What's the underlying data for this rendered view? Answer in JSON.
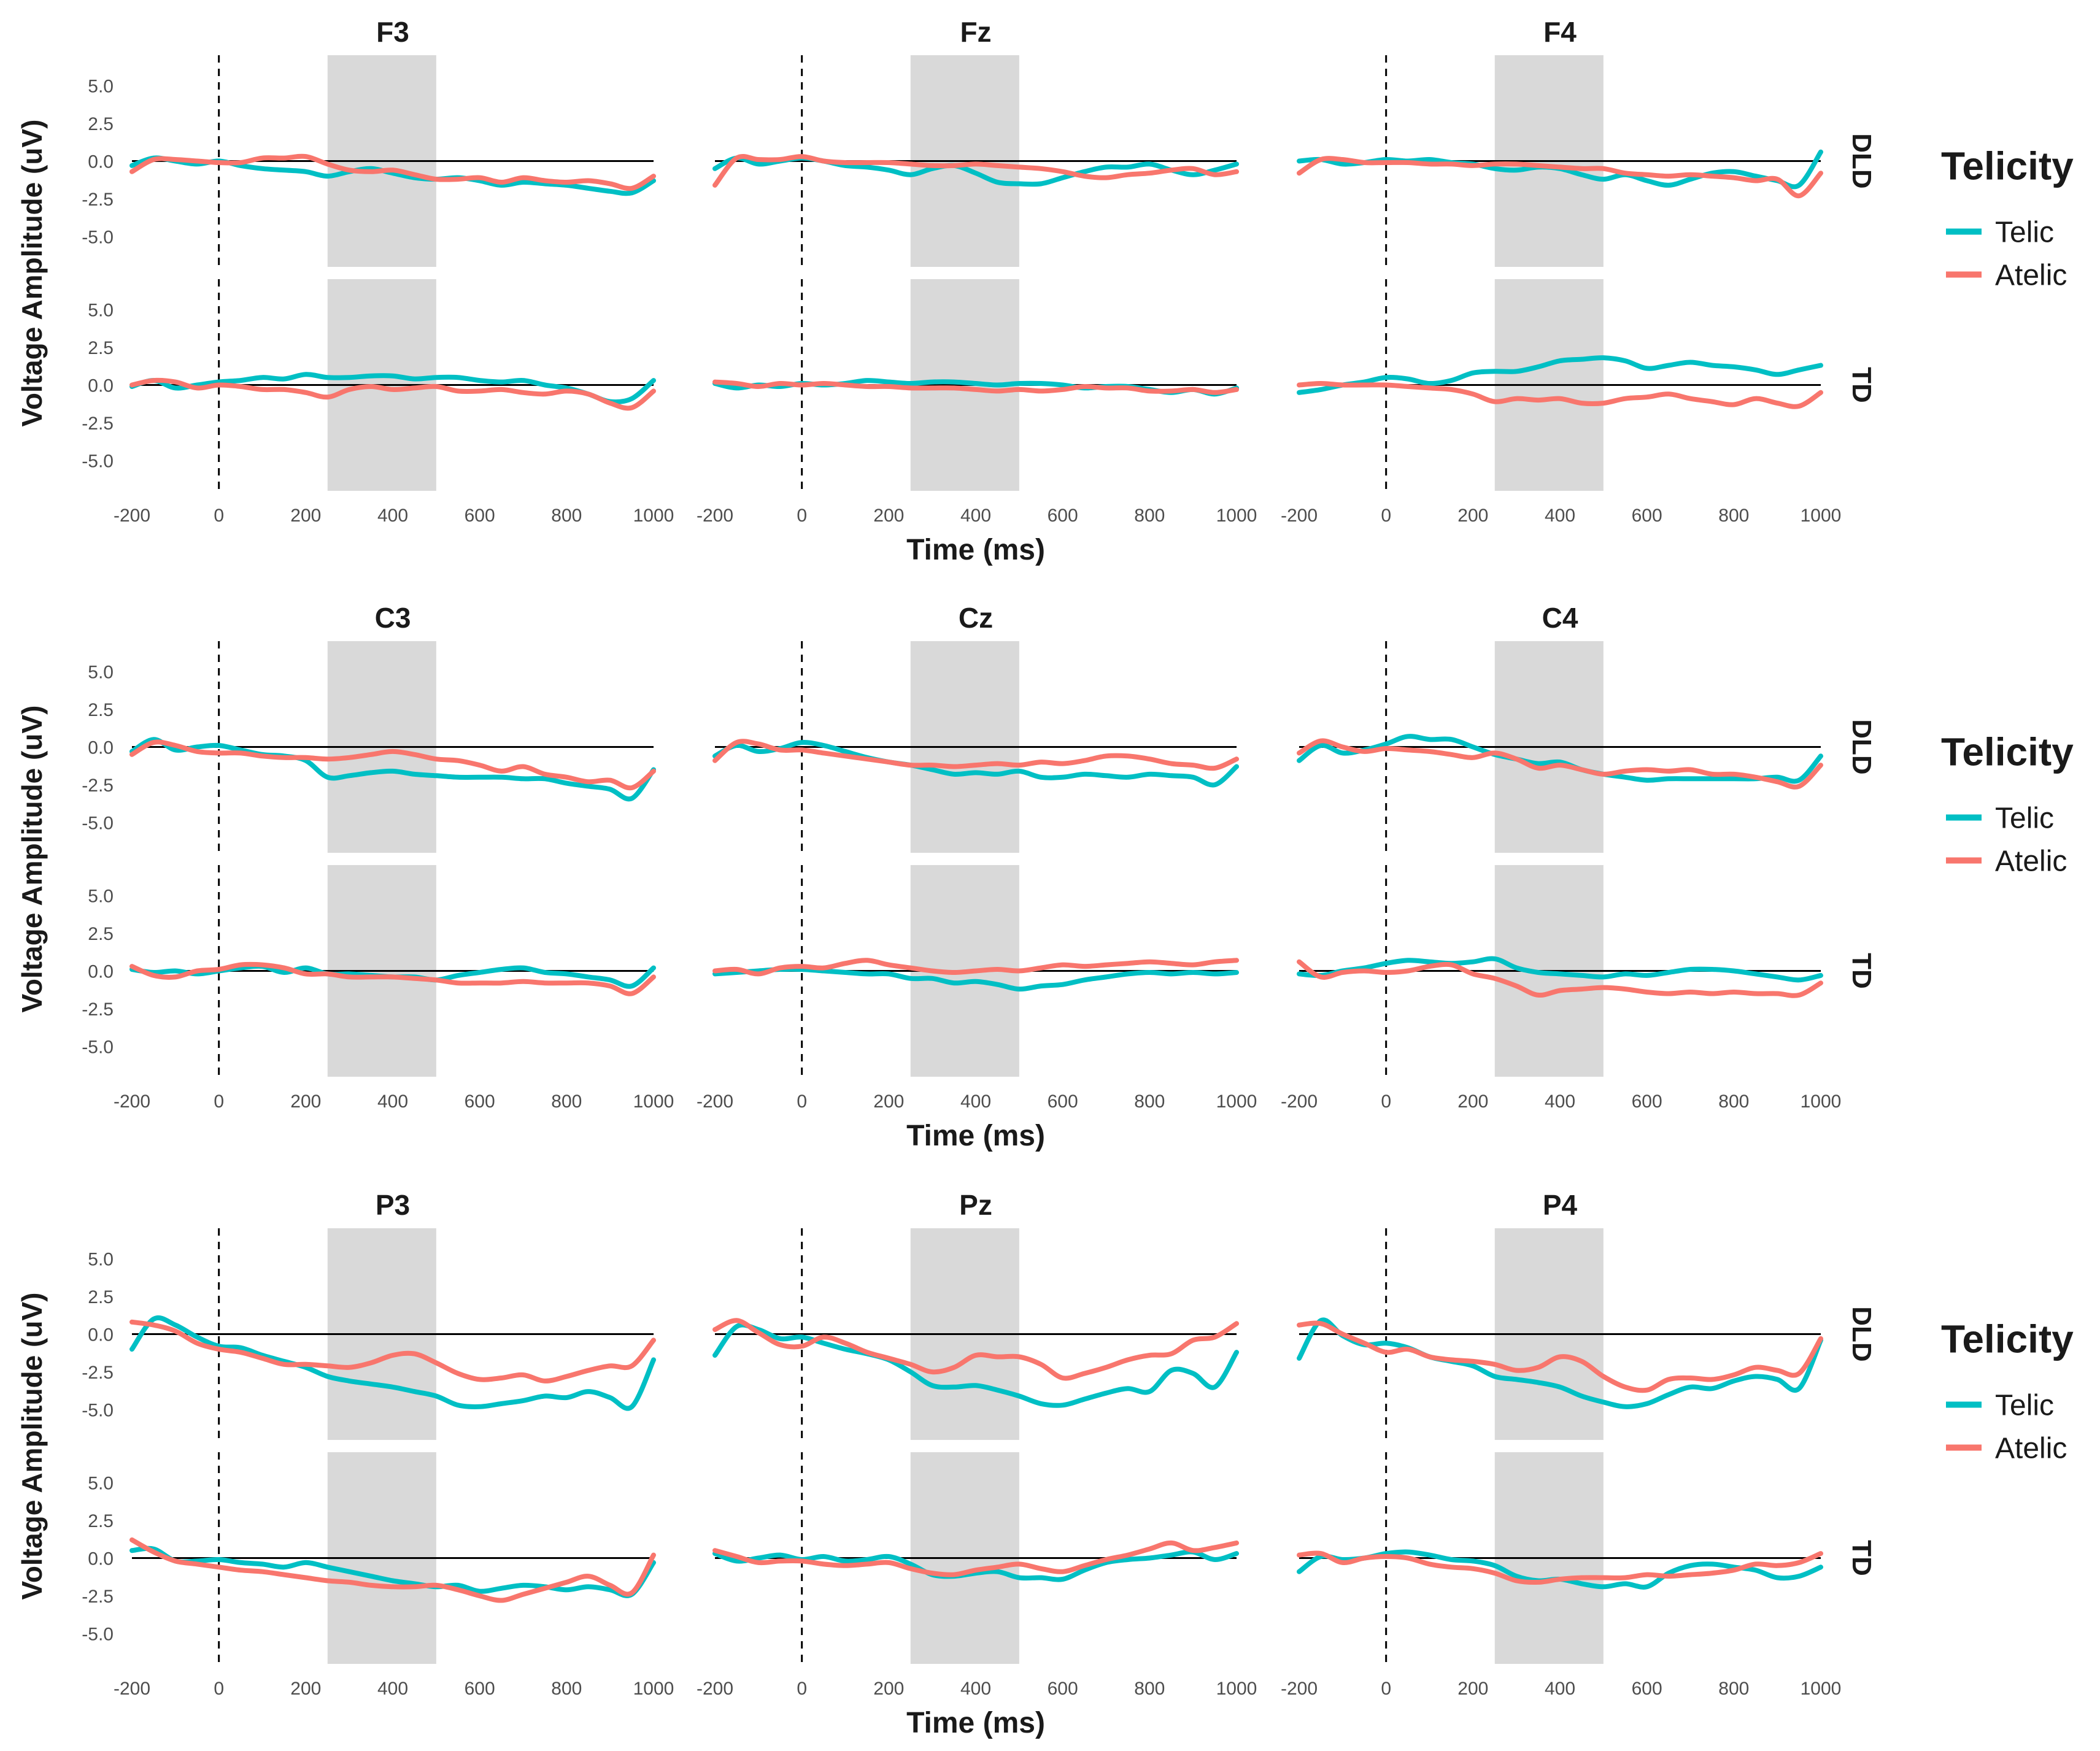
{
  "chart_data": {
    "type": "line",
    "facet_rows": [
      "DLD",
      "TD"
    ],
    "x_label": "Time (ms)",
    "y_label": "Voltage Amplitude (uV)",
    "xlim": [
      -200,
      1000
    ],
    "ylim": [
      -7,
      7
    ],
    "x_ticks": [
      "-200",
      "0",
      "200",
      "400",
      "600",
      "800",
      "1000"
    ],
    "y_ticks": [
      "5.0",
      "2.5",
      "0.0",
      "-2.5",
      "-5.0"
    ],
    "shaded_window": [
      250,
      500
    ],
    "onset_marker": 0,
    "legend": {
      "title": "Telicity",
      "entries": [
        {
          "name": "Telic",
          "color": "#00bfc4"
        },
        {
          "name": "Atelic",
          "color": "#f8766d"
        }
      ]
    },
    "time_points": [
      -200,
      -150,
      -100,
      -50,
      0,
      50,
      100,
      150,
      200,
      250,
      300,
      350,
      400,
      450,
      500,
      550,
      600,
      650,
      700,
      750,
      800,
      850,
      900,
      950,
      1000
    ],
    "panels": [
      {
        "electrode": "F3",
        "DLD": {
          "Telic": [
            -0.3,
            0.2,
            0.0,
            -0.2,
            0.0,
            -0.3,
            -0.5,
            -0.6,
            -0.7,
            -1.0,
            -0.7,
            -0.5,
            -0.8,
            -1.1,
            -1.2,
            -1.1,
            -1.3,
            -1.6,
            -1.4,
            -1.5,
            -1.6,
            -1.8,
            -2.0,
            -2.1,
            -1.3
          ],
          "Atelic": [
            -0.7,
            0.1,
            0.1,
            0.0,
            -0.1,
            -0.1,
            0.2,
            0.2,
            0.3,
            -0.2,
            -0.6,
            -0.7,
            -0.6,
            -0.9,
            -1.2,
            -1.2,
            -1.1,
            -1.4,
            -1.1,
            -1.3,
            -1.4,
            -1.3,
            -1.5,
            -1.8,
            -1.0
          ]
        },
        "TD": {
          "Telic": [
            -0.1,
            0.3,
            -0.2,
            0.0,
            0.2,
            0.3,
            0.5,
            0.4,
            0.7,
            0.5,
            0.5,
            0.6,
            0.6,
            0.4,
            0.5,
            0.5,
            0.3,
            0.2,
            0.3,
            0.0,
            -0.2,
            -0.6,
            -1.1,
            -0.9,
            0.3
          ],
          "Atelic": [
            0.0,
            0.3,
            0.2,
            -0.2,
            0.0,
            -0.1,
            -0.3,
            -0.3,
            -0.5,
            -0.8,
            -0.3,
            -0.1,
            -0.3,
            -0.2,
            -0.1,
            -0.4,
            -0.4,
            -0.3,
            -0.5,
            -0.6,
            -0.4,
            -0.6,
            -1.2,
            -1.5,
            -0.4
          ]
        }
      },
      {
        "electrode": "Fz",
        "DLD": {
          "Telic": [
            -0.5,
            0.2,
            -0.2,
            0.0,
            0.2,
            0.0,
            -0.3,
            -0.4,
            -0.6,
            -0.9,
            -0.5,
            -0.3,
            -0.8,
            -1.4,
            -1.5,
            -1.5,
            -1.1,
            -0.7,
            -0.4,
            -0.4,
            -0.2,
            -0.6,
            -0.9,
            -0.6,
            -0.2
          ],
          "Atelic": [
            -1.6,
            0.2,
            0.1,
            0.1,
            0.3,
            0.0,
            -0.1,
            -0.1,
            -0.1,
            -0.2,
            -0.3,
            -0.3,
            -0.2,
            -0.3,
            -0.4,
            -0.5,
            -0.7,
            -1.0,
            -1.1,
            -0.9,
            -0.8,
            -0.6,
            -0.5,
            -0.9,
            -0.7
          ]
        },
        "TD": {
          "Telic": [
            0.1,
            -0.2,
            0.0,
            -0.1,
            0.1,
            0.0,
            0.1,
            0.3,
            0.2,
            0.1,
            0.2,
            0.2,
            0.1,
            0.0,
            0.1,
            0.1,
            0.0,
            -0.2,
            -0.1,
            -0.1,
            -0.3,
            -0.5,
            -0.3,
            -0.6,
            -0.2
          ],
          "Atelic": [
            0.2,
            0.1,
            -0.1,
            0.1,
            0.0,
            0.1,
            0.0,
            -0.1,
            -0.1,
            -0.2,
            -0.2,
            -0.2,
            -0.3,
            -0.4,
            -0.3,
            -0.4,
            -0.3,
            -0.1,
            -0.2,
            -0.2,
            -0.4,
            -0.4,
            -0.3,
            -0.5,
            -0.3
          ]
        }
      },
      {
        "electrode": "F4",
        "DLD": {
          "Telic": [
            0.0,
            0.1,
            -0.2,
            -0.1,
            0.1,
            0.0,
            0.1,
            -0.1,
            -0.2,
            -0.5,
            -0.6,
            -0.4,
            -0.5,
            -0.9,
            -1.2,
            -0.9,
            -1.3,
            -1.6,
            -1.2,
            -0.8,
            -0.7,
            -1.0,
            -1.3,
            -1.6,
            0.6
          ],
          "Atelic": [
            -0.8,
            0.1,
            0.1,
            -0.1,
            -0.1,
            -0.1,
            -0.2,
            -0.2,
            -0.3,
            -0.2,
            -0.2,
            -0.3,
            -0.4,
            -0.5,
            -0.5,
            -0.8,
            -0.9,
            -1.0,
            -0.9,
            -1.0,
            -1.1,
            -1.3,
            -1.2,
            -2.3,
            -0.8
          ]
        },
        "TD": {
          "Telic": [
            -0.5,
            -0.3,
            0.0,
            0.2,
            0.5,
            0.4,
            0.1,
            0.3,
            0.8,
            0.9,
            0.9,
            1.2,
            1.6,
            1.7,
            1.8,
            1.6,
            1.1,
            1.3,
            1.5,
            1.3,
            1.2,
            1.0,
            0.7,
            1.0,
            1.3
          ],
          "Atelic": [
            0.0,
            0.1,
            0.0,
            0.0,
            0.0,
            -0.1,
            -0.2,
            -0.3,
            -0.6,
            -1.1,
            -0.9,
            -1.0,
            -0.9,
            -1.2,
            -1.2,
            -0.9,
            -0.8,
            -0.6,
            -0.9,
            -1.1,
            -1.3,
            -0.9,
            -1.2,
            -1.4,
            -0.5
          ]
        }
      },
      {
        "electrode": "C3",
        "DLD": {
          "Telic": [
            -0.3,
            0.5,
            -0.2,
            0.0,
            0.1,
            -0.2,
            -0.5,
            -0.6,
            -0.9,
            -2.0,
            -1.9,
            -1.7,
            -1.6,
            -1.8,
            -1.9,
            -2.0,
            -2.0,
            -2.0,
            -2.1,
            -2.1,
            -2.4,
            -2.6,
            -2.8,
            -3.4,
            -1.5
          ],
          "Atelic": [
            -0.5,
            0.3,
            0.1,
            -0.3,
            -0.4,
            -0.4,
            -0.6,
            -0.7,
            -0.7,
            -0.8,
            -0.7,
            -0.5,
            -0.3,
            -0.5,
            -0.8,
            -0.9,
            -1.2,
            -1.6,
            -1.3,
            -1.8,
            -2.0,
            -2.3,
            -2.2,
            -2.7,
            -1.6
          ]
        },
        "TD": {
          "Telic": [
            0.1,
            -0.1,
            0.0,
            -0.2,
            0.0,
            0.2,
            0.3,
            -0.1,
            0.2,
            -0.2,
            -0.2,
            -0.3,
            -0.4,
            -0.4,
            -0.6,
            -0.3,
            -0.1,
            0.1,
            0.2,
            -0.1,
            -0.2,
            -0.4,
            -0.6,
            -1.0,
            0.2
          ],
          "Atelic": [
            0.3,
            -0.3,
            -0.4,
            0.0,
            0.1,
            0.4,
            0.4,
            0.2,
            -0.2,
            -0.2,
            -0.4,
            -0.4,
            -0.4,
            -0.5,
            -0.6,
            -0.8,
            -0.8,
            -0.8,
            -0.7,
            -0.8,
            -0.8,
            -0.8,
            -1.0,
            -1.5,
            -0.4
          ]
        }
      },
      {
        "electrode": "Cz",
        "DLD": {
          "Telic": [
            -0.6,
            0.1,
            -0.3,
            -0.1,
            0.3,
            0.1,
            -0.3,
            -0.7,
            -1.0,
            -1.2,
            -1.5,
            -1.8,
            -1.7,
            -1.8,
            -1.6,
            -2.0,
            -2.0,
            -1.8,
            -1.9,
            -2.0,
            -1.8,
            -1.9,
            -2.0,
            -2.5,
            -1.3
          ],
          "Atelic": [
            -0.9,
            0.3,
            0.2,
            -0.2,
            -0.2,
            -0.4,
            -0.6,
            -0.8,
            -1.0,
            -1.2,
            -1.2,
            -1.3,
            -1.2,
            -1.1,
            -1.2,
            -1.0,
            -1.1,
            -0.9,
            -0.6,
            -0.6,
            -0.8,
            -1.1,
            -1.2,
            -1.4,
            -0.8
          ]
        },
        "TD": {
          "Telic": [
            -0.2,
            -0.1,
            0.0,
            0.1,
            0.1,
            0.0,
            -0.1,
            -0.2,
            -0.2,
            -0.5,
            -0.5,
            -0.8,
            -0.7,
            -0.9,
            -1.2,
            -1.0,
            -0.9,
            -0.6,
            -0.4,
            -0.2,
            -0.1,
            -0.2,
            -0.1,
            -0.2,
            -0.1
          ],
          "Atelic": [
            0.0,
            0.1,
            -0.2,
            0.2,
            0.3,
            0.2,
            0.5,
            0.7,
            0.4,
            0.2,
            0.0,
            -0.1,
            0.0,
            0.1,
            0.0,
            0.2,
            0.4,
            0.3,
            0.4,
            0.5,
            0.6,
            0.5,
            0.4,
            0.6,
            0.7
          ]
        }
      },
      {
        "electrode": "C4",
        "DLD": {
          "Telic": [
            -0.9,
            0.1,
            -0.4,
            -0.2,
            0.2,
            0.7,
            0.5,
            0.5,
            0.0,
            -0.5,
            -0.8,
            -1.1,
            -1.0,
            -1.5,
            -1.8,
            -2.0,
            -2.2,
            -2.1,
            -2.1,
            -2.1,
            -2.1,
            -2.1,
            -2.0,
            -2.2,
            -0.6
          ],
          "Atelic": [
            -0.4,
            0.4,
            0.0,
            -0.3,
            -0.1,
            -0.2,
            -0.3,
            -0.5,
            -0.7,
            -0.4,
            -0.8,
            -1.4,
            -1.2,
            -1.5,
            -1.8,
            -1.6,
            -1.5,
            -1.6,
            -1.5,
            -1.8,
            -1.8,
            -2.0,
            -2.3,
            -2.6,
            -1.2
          ]
        },
        "TD": {
          "Telic": [
            -0.2,
            -0.3,
            0.0,
            0.2,
            0.5,
            0.7,
            0.6,
            0.5,
            0.6,
            0.8,
            0.2,
            -0.1,
            -0.2,
            -0.3,
            -0.4,
            -0.2,
            -0.3,
            -0.1,
            0.1,
            0.1,
            0.0,
            -0.2,
            -0.4,
            -0.6,
            -0.3
          ],
          "Atelic": [
            0.6,
            -0.4,
            -0.1,
            0.0,
            -0.1,
            0.0,
            0.3,
            0.4,
            -0.2,
            -0.5,
            -1.0,
            -1.6,
            -1.3,
            -1.2,
            -1.1,
            -1.2,
            -1.4,
            -1.5,
            -1.4,
            -1.5,
            -1.4,
            -1.5,
            -1.5,
            -1.6,
            -0.8
          ]
        }
      },
      {
        "electrode": "P3",
        "DLD": {
          "Telic": [
            -1.0,
            1.0,
            0.6,
            -0.2,
            -0.8,
            -0.9,
            -1.4,
            -1.8,
            -2.2,
            -2.8,
            -3.1,
            -3.3,
            -3.5,
            -3.8,
            -4.1,
            -4.7,
            -4.8,
            -4.6,
            -4.4,
            -4.1,
            -4.2,
            -3.8,
            -4.2,
            -4.8,
            -1.7
          ],
          "Atelic": [
            0.8,
            0.6,
            0.2,
            -0.6,
            -1.0,
            -1.2,
            -1.6,
            -2.0,
            -2.0,
            -2.1,
            -2.2,
            -1.9,
            -1.4,
            -1.3,
            -1.9,
            -2.6,
            -3.0,
            -2.9,
            -2.7,
            -3.1,
            -2.8,
            -2.4,
            -2.1,
            -2.1,
            -0.4
          ]
        },
        "TD": {
          "Telic": [
            0.5,
            0.6,
            -0.2,
            -0.2,
            -0.1,
            -0.3,
            -0.4,
            -0.6,
            -0.3,
            -0.6,
            -0.9,
            -1.2,
            -1.5,
            -1.7,
            -1.9,
            -1.8,
            -2.2,
            -2.0,
            -1.8,
            -1.9,
            -2.1,
            -1.9,
            -2.1,
            -2.4,
            -0.3
          ],
          "Atelic": [
            1.2,
            0.4,
            -0.2,
            -0.4,
            -0.6,
            -0.8,
            -0.9,
            -1.1,
            -1.3,
            -1.5,
            -1.6,
            -1.8,
            -1.9,
            -1.9,
            -1.8,
            -2.1,
            -2.5,
            -2.8,
            -2.4,
            -2.0,
            -1.6,
            -1.2,
            -1.8,
            -2.3,
            0.2
          ]
        }
      },
      {
        "electrode": "Pz",
        "DLD": {
          "Telic": [
            -1.4,
            0.5,
            0.3,
            -0.3,
            -0.2,
            -0.6,
            -1.0,
            -1.3,
            -1.7,
            -2.5,
            -3.4,
            -3.5,
            -3.4,
            -3.7,
            -4.1,
            -4.6,
            -4.7,
            -4.3,
            -3.9,
            -3.6,
            -3.8,
            -2.4,
            -2.6,
            -3.5,
            -1.2
          ],
          "Atelic": [
            0.3,
            0.9,
            0.1,
            -0.7,
            -0.8,
            -0.2,
            -0.6,
            -1.2,
            -1.6,
            -2.0,
            -2.5,
            -2.2,
            -1.4,
            -1.5,
            -1.5,
            -2.0,
            -2.9,
            -2.6,
            -2.2,
            -1.7,
            -1.4,
            -1.3,
            -0.4,
            -0.2,
            0.7
          ]
        },
        "TD": {
          "Telic": [
            0.3,
            -0.2,
            0.0,
            0.2,
            -0.1,
            0.1,
            -0.2,
            -0.1,
            0.1,
            -0.4,
            -1.1,
            -1.2,
            -1.0,
            -0.9,
            -1.3,
            -1.3,
            -1.4,
            -0.8,
            -0.3,
            -0.1,
            0.0,
            0.2,
            0.4,
            -0.1,
            0.3
          ],
          "Atelic": [
            0.5,
            0.1,
            -0.3,
            -0.2,
            -0.2,
            -0.4,
            -0.5,
            -0.4,
            -0.3,
            -0.7,
            -1.0,
            -1.1,
            -0.8,
            -0.6,
            -0.4,
            -0.7,
            -0.9,
            -0.5,
            -0.1,
            0.2,
            0.6,
            1.0,
            0.5,
            0.7,
            1.0
          ]
        }
      },
      {
        "electrode": "P4",
        "DLD": {
          "Telic": [
            -1.6,
            0.9,
            -0.1,
            -0.7,
            -0.6,
            -0.9,
            -1.5,
            -1.8,
            -2.1,
            -2.8,
            -3.0,
            -3.2,
            -3.5,
            -4.1,
            -4.5,
            -4.8,
            -4.6,
            -4.0,
            -3.5,
            -3.6,
            -3.1,
            -2.8,
            -3.0,
            -3.6,
            -0.4
          ],
          "Atelic": [
            0.6,
            0.7,
            0.0,
            -0.6,
            -1.2,
            -1.0,
            -1.5,
            -1.7,
            -1.8,
            -2.0,
            -2.4,
            -2.2,
            -1.5,
            -1.8,
            -2.8,
            -3.5,
            -3.7,
            -3.0,
            -2.9,
            -3.0,
            -2.7,
            -2.2,
            -2.4,
            -2.6,
            -0.3
          ]
        },
        "TD": {
          "Telic": [
            -0.9,
            0.1,
            -0.1,
            0.0,
            0.3,
            0.4,
            0.2,
            -0.1,
            -0.2,
            -0.5,
            -1.2,
            -1.5,
            -1.4,
            -1.7,
            -1.9,
            -1.7,
            -1.9,
            -1.0,
            -0.5,
            -0.4,
            -0.6,
            -0.8,
            -1.3,
            -1.2,
            -0.6
          ],
          "Atelic": [
            0.2,
            0.3,
            -0.3,
            0.0,
            0.1,
            0.0,
            -0.4,
            -0.6,
            -0.7,
            -1.0,
            -1.5,
            -1.6,
            -1.4,
            -1.3,
            -1.3,
            -1.3,
            -1.1,
            -1.2,
            -1.1,
            -1.0,
            -0.8,
            -0.4,
            -0.5,
            -0.3,
            0.3
          ]
        }
      }
    ]
  }
}
